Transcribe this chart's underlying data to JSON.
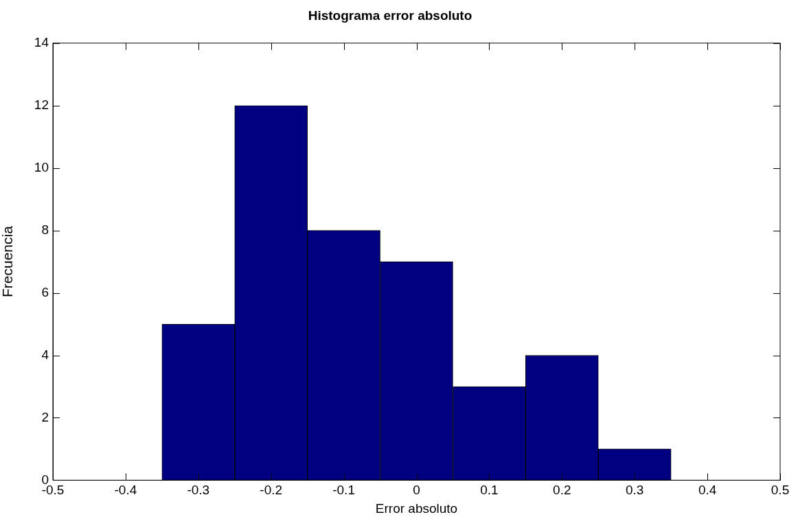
{
  "chart_data": {
    "type": "histogram",
    "title": "Histograma error absoluto",
    "xlabel": "Error absoluto",
    "ylabel": "Frecuencia",
    "bins": [
      -0.35,
      -0.25,
      -0.15,
      -0.05,
      0.05,
      0.15,
      0.25,
      0.35
    ],
    "values": [
      5,
      12,
      8,
      7,
      3,
      4,
      1
    ],
    "color": "#000080",
    "xlim": [
      -0.5,
      0.5
    ],
    "xticks": [
      -0.5,
      -0.4,
      -0.3,
      -0.2,
      -0.1,
      0,
      0.1,
      0.2,
      0.3,
      0.4,
      0.5
    ],
    "ylim": [
      0,
      14
    ],
    "yticks": [
      0,
      2,
      4,
      6,
      8,
      10,
      12,
      14
    ],
    "grid": false,
    "legend": false
  }
}
